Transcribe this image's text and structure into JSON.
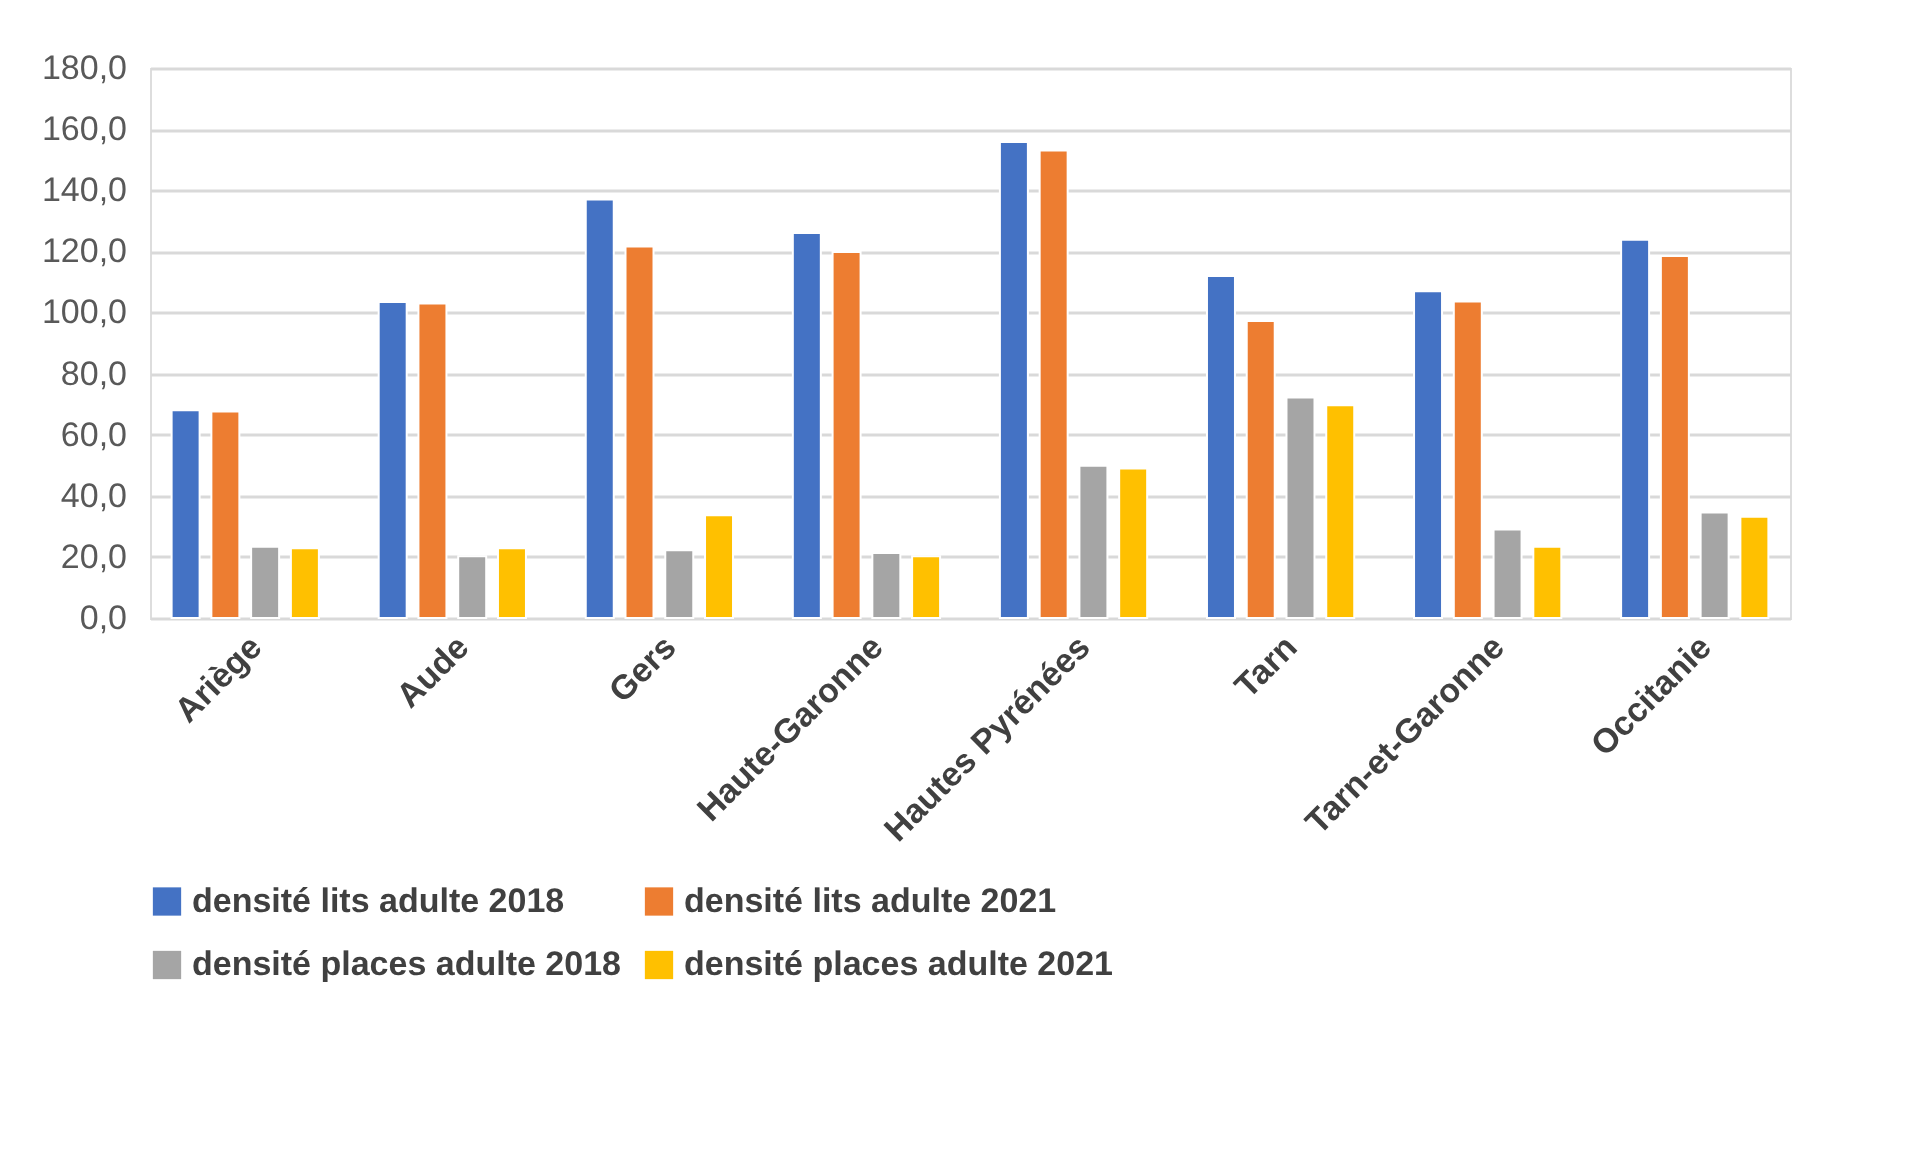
{
  "chart_data": {
    "type": "bar",
    "categories": [
      "Ariège",
      "Aude",
      "Gers",
      "Haute-Garonne",
      "Hautes Pyrénées",
      "Tarn",
      "Tarn-et-Garonne",
      "Occitanie"
    ],
    "series": [
      {
        "name": "densité lits adulte 2018",
        "color": "#4472c4",
        "values": [
          68.0,
          103.4,
          137.0,
          126.0,
          155.8,
          111.9,
          106.9,
          123.8
        ]
      },
      {
        "name": "densité lits adulte 2021",
        "color": "#ed7d31",
        "values": [
          67.6,
          102.9,
          121.6,
          119.8,
          153.0,
          97.2,
          103.6,
          118.5
        ]
      },
      {
        "name": "densité places adulte 2018",
        "color": "#a5a5a5",
        "values": [
          23.3,
          20.2,
          22.2,
          21.3,
          49.8,
          72.2,
          29.0,
          34.5
        ]
      },
      {
        "name": "densité places adulte 2021",
        "color": "#ffc000",
        "values": [
          22.8,
          22.8,
          33.6,
          20.2,
          48.9,
          69.6,
          23.3,
          33.1
        ]
      }
    ],
    "ylim": [
      0,
      180
    ],
    "yticks": [
      {
        "value": 0,
        "label": "0,0"
      },
      {
        "value": 20,
        "label": "20,0"
      },
      {
        "value": 40,
        "label": "40,0"
      },
      {
        "value": 60,
        "label": "60,0"
      },
      {
        "value": 80,
        "label": "80,0"
      },
      {
        "value": 100,
        "label": "100,0"
      },
      {
        "value": 120,
        "label": "120,0"
      },
      {
        "value": 140,
        "label": "140,0"
      },
      {
        "value": 160,
        "label": "160,0"
      },
      {
        "value": 180,
        "label": "180,0"
      }
    ],
    "grid": "y",
    "legend": "bottom"
  }
}
